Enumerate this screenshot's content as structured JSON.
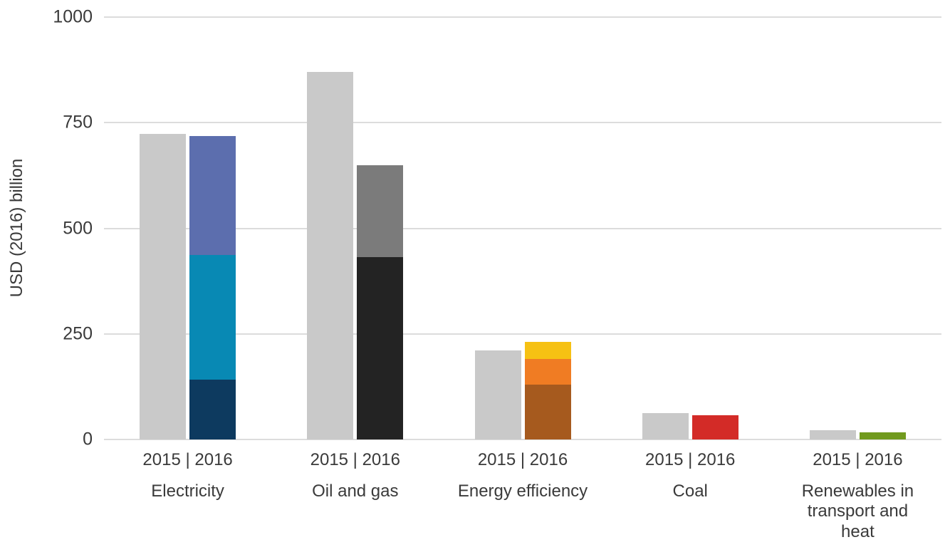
{
  "chart_data": {
    "type": "bar",
    "subtype": "grouped-stacked",
    "title": "",
    "ylabel": "USD (2016) billion",
    "xlabel": "",
    "ylim": [
      0,
      1000
    ],
    "yticks": [
      0,
      250,
      500,
      750,
      1000
    ],
    "grid": true,
    "legend": "none",
    "x_pair_label": "2015 | 2016",
    "colors": {
      "bar_2015_gray": "#c9c9c9",
      "gridline": "#dcdcdc",
      "text": "#3a3a3a"
    },
    "groups": [
      {
        "category": "Electricity",
        "bars": [
          {
            "year": "2015",
            "total": 723,
            "segments": [
              {
                "value": 723,
                "color": "#c9c9c9"
              }
            ]
          },
          {
            "year": "2016",
            "total": 719,
            "segments": [
              {
                "value": 142,
                "color": "#0d3a5f"
              },
              {
                "value": 295,
                "color": "#0889b4"
              },
              {
                "value": 282,
                "color": "#5c6eae"
              }
            ]
          }
        ]
      },
      {
        "category": "Oil and gas",
        "bars": [
          {
            "year": "2015",
            "total": 870,
            "segments": [
              {
                "value": 870,
                "color": "#c9c9c9"
              }
            ]
          },
          {
            "year": "2016",
            "total": 649,
            "segments": [
              {
                "value": 431,
                "color": "#232323"
              },
              {
                "value": 218,
                "color": "#7b7b7b"
              }
            ]
          }
        ]
      },
      {
        "category": "Energy efficiency",
        "bars": [
          {
            "year": "2015",
            "total": 211,
            "segments": [
              {
                "value": 211,
                "color": "#c9c9c9"
              }
            ]
          },
          {
            "year": "2016",
            "total": 231,
            "segments": [
              {
                "value": 130,
                "color": "#a65a1e"
              },
              {
                "value": 61,
                "color": "#f07c23"
              },
              {
                "value": 40,
                "color": "#f6c113"
              }
            ]
          }
        ]
      },
      {
        "category": "Coal",
        "bars": [
          {
            "year": "2015",
            "total": 63,
            "segments": [
              {
                "value": 63,
                "color": "#c9c9c9"
              }
            ]
          },
          {
            "year": "2016",
            "total": 57,
            "segments": [
              {
                "value": 57,
                "color": "#d32b27"
              }
            ]
          }
        ]
      },
      {
        "category": "Renewables in\ntransport and\nheat",
        "bars": [
          {
            "year": "2015",
            "total": 22,
            "segments": [
              {
                "value": 22,
                "color": "#c9c9c9"
              }
            ]
          },
          {
            "year": "2016",
            "total": 17,
            "segments": [
              {
                "value": 17,
                "color": "#719a1e"
              }
            ]
          }
        ]
      }
    ]
  }
}
